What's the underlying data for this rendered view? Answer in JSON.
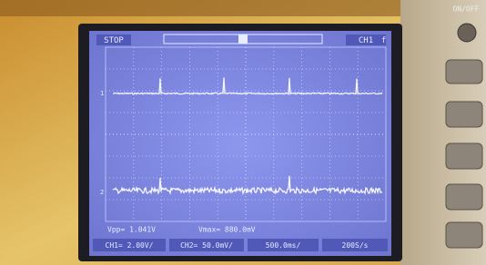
{
  "scope": {
    "status": "STOP",
    "channel_indicator": "CH1",
    "trigger_icon": "f",
    "channel_markers": [
      "1",
      "2"
    ],
    "measurements": [
      "Vpp= 1.041V",
      "Vmax= 880.0mV"
    ],
    "status_bar": [
      "CH1= 2.00V/",
      "CH2= 50.0mV/",
      "500.0ms/",
      "200S/s"
    ],
    "power_button": "ON/OFF"
  }
}
